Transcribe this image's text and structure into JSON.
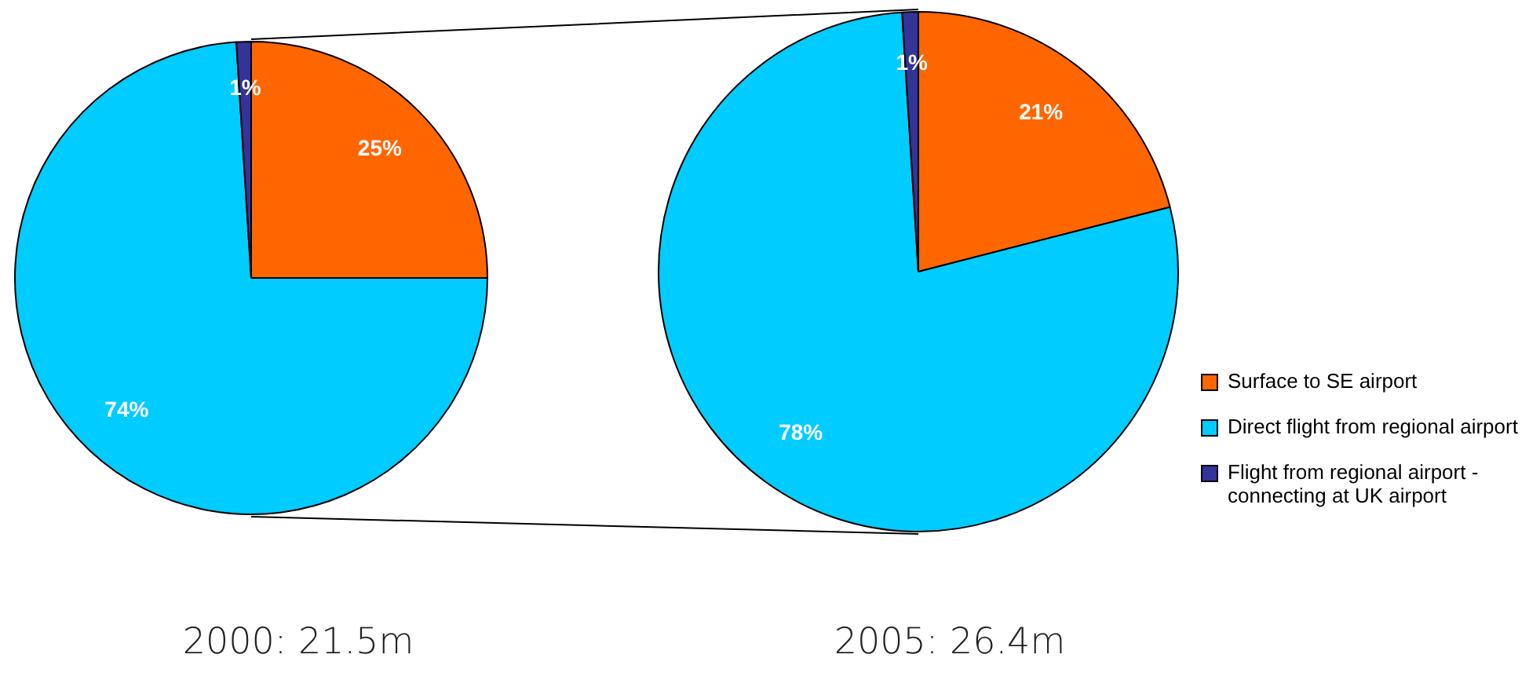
{
  "chart_data": [
    {
      "type": "pie",
      "title": "2000: 21.5m",
      "categories": [
        null,
        null,
        null
      ],
      "values": [
        25,
        74,
        1
      ],
      "colors": [
        "#ff6600",
        "#00ccff",
        "#333399"
      ],
      "value_labels": [
        "25%",
        "74%",
        "1%"
      ]
    },
    {
      "type": "pie",
      "title": "2005: 26.4m",
      "categories": [
        "Surface to SE airport",
        "Direct flight from regional airport",
        "Flight from regional airport - connecting at UK airport"
      ],
      "values": [
        21,
        78,
        1
      ],
      "colors": [
        "#ff6600",
        "#00ccff",
        "#333399"
      ],
      "value_labels": [
        "21%",
        "78%",
        "1%"
      ],
      "legend": "right"
    }
  ]
}
